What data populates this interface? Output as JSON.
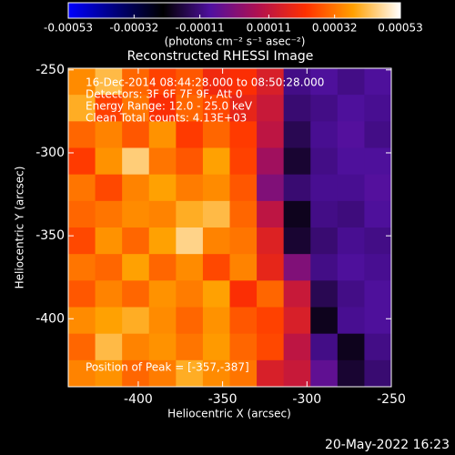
{
  "chart_data": {
    "type": "heatmap",
    "title": "Reconstructed RHESSI Image",
    "x_label": "Heliocentric X (arcsec)",
    "y_label": "Heliocentric Y (arcsec)",
    "xlim": [
      -441.5,
      -250
    ],
    "ylim": [
      -441,
      -249
    ],
    "xticks": [
      -400,
      -350,
      -300,
      -250
    ],
    "yticks": [
      -250,
      -300,
      -350,
      -400
    ],
    "colorbar": {
      "label": "(photons cm⁻² s⁻¹ asec⁻²)",
      "clim": [
        -0.00053,
        0.00053
      ],
      "ticks": [
        -0.00053,
        -0.00032,
        -0.00011,
        0.00011,
        0.00032,
        0.00053
      ],
      "colorscale": [
        "#0000ff",
        "#00007a",
        "#000000",
        "#5010a0",
        "#b01050",
        "#ff3000",
        "#ffa000",
        "#ffffff"
      ]
    },
    "annotations": [
      "16-Dec-2014 08:44:28.000 to 08:50:28.000",
      "Detectors: 3F 6F 7F 9F, Att 0",
      "Energy Range: 12.0 - 25.0 keV",
      "Clean    Total counts: 4.13E+03"
    ],
    "peak_label": "Position of Peak = [-357,-387]",
    "timestamp": "20-May-2022 16:23",
    "z": [
      [
        0.00035,
        0.00042,
        0.0003,
        0.00025,
        0.00028,
        0.0002,
        0.00022,
        0.00015,
        -0.0001,
        -8e-05,
        -0.0001,
        -8e-05
      ],
      [
        0.0004,
        0.00025,
        0.00032,
        0.00022,
        0.0003,
        0.00026,
        0.00018,
        0.00012,
        -0.00012,
        -0.0001,
        -8e-05,
        -9e-05
      ],
      [
        0.0003,
        0.00034,
        0.00028,
        0.00036,
        0.00024,
        0.0003,
        0.00024,
        0.0001,
        -0.00015,
        -9e-05,
        -7e-05,
        -0.0001
      ],
      [
        0.00024,
        0.00036,
        0.00045,
        0.00032,
        0.00028,
        0.00038,
        0.00025,
        5e-05,
        -0.00018,
        -0.0001,
        -8e-05,
        -8e-05
      ],
      [
        0.00032,
        0.00026,
        0.00034,
        0.00038,
        0.00033,
        0.00035,
        0.00028,
        0.0,
        -0.00012,
        -9e-05,
        -9e-05,
        -7e-05
      ],
      [
        0.0003,
        0.00032,
        0.00035,
        0.00034,
        0.0004,
        0.00042,
        0.0003,
        0.0001,
        -0.0002,
        -0.0001,
        -0.00011,
        -8e-05
      ],
      [
        0.00026,
        0.00036,
        0.0003,
        0.00038,
        0.00046,
        0.00034,
        0.00032,
        0.00016,
        -0.00018,
        -0.00012,
        -9e-05,
        -0.0001
      ],
      [
        0.00032,
        0.0003,
        0.00038,
        0.0003,
        0.00035,
        0.00026,
        0.00034,
        0.00018,
        0.0,
        -0.0001,
        -8e-05,
        -9e-05
      ],
      [
        0.00028,
        0.00034,
        0.0003,
        0.00036,
        0.00033,
        0.00038,
        0.00022,
        0.0003,
        0.00012,
        -0.00015,
        -0.0001,
        -8e-05
      ],
      [
        0.00035,
        0.00038,
        0.0004,
        0.00035,
        0.0003,
        0.00036,
        0.00028,
        0.00025,
        0.00015,
        -0.0002,
        -9e-05,
        -8e-05
      ],
      [
        0.0003,
        0.00042,
        0.00034,
        0.00036,
        0.00032,
        0.00037,
        0.0003,
        0.00026,
        0.0001,
        -0.0001,
        -0.0002,
        -0.0001
      ],
      [
        0.00034,
        0.00036,
        0.0003,
        0.00033,
        0.0004,
        0.00035,
        0.00032,
        0.00015,
        0.00012,
        -5e-05,
        -0.00018,
        -0.00012
      ]
    ]
  }
}
